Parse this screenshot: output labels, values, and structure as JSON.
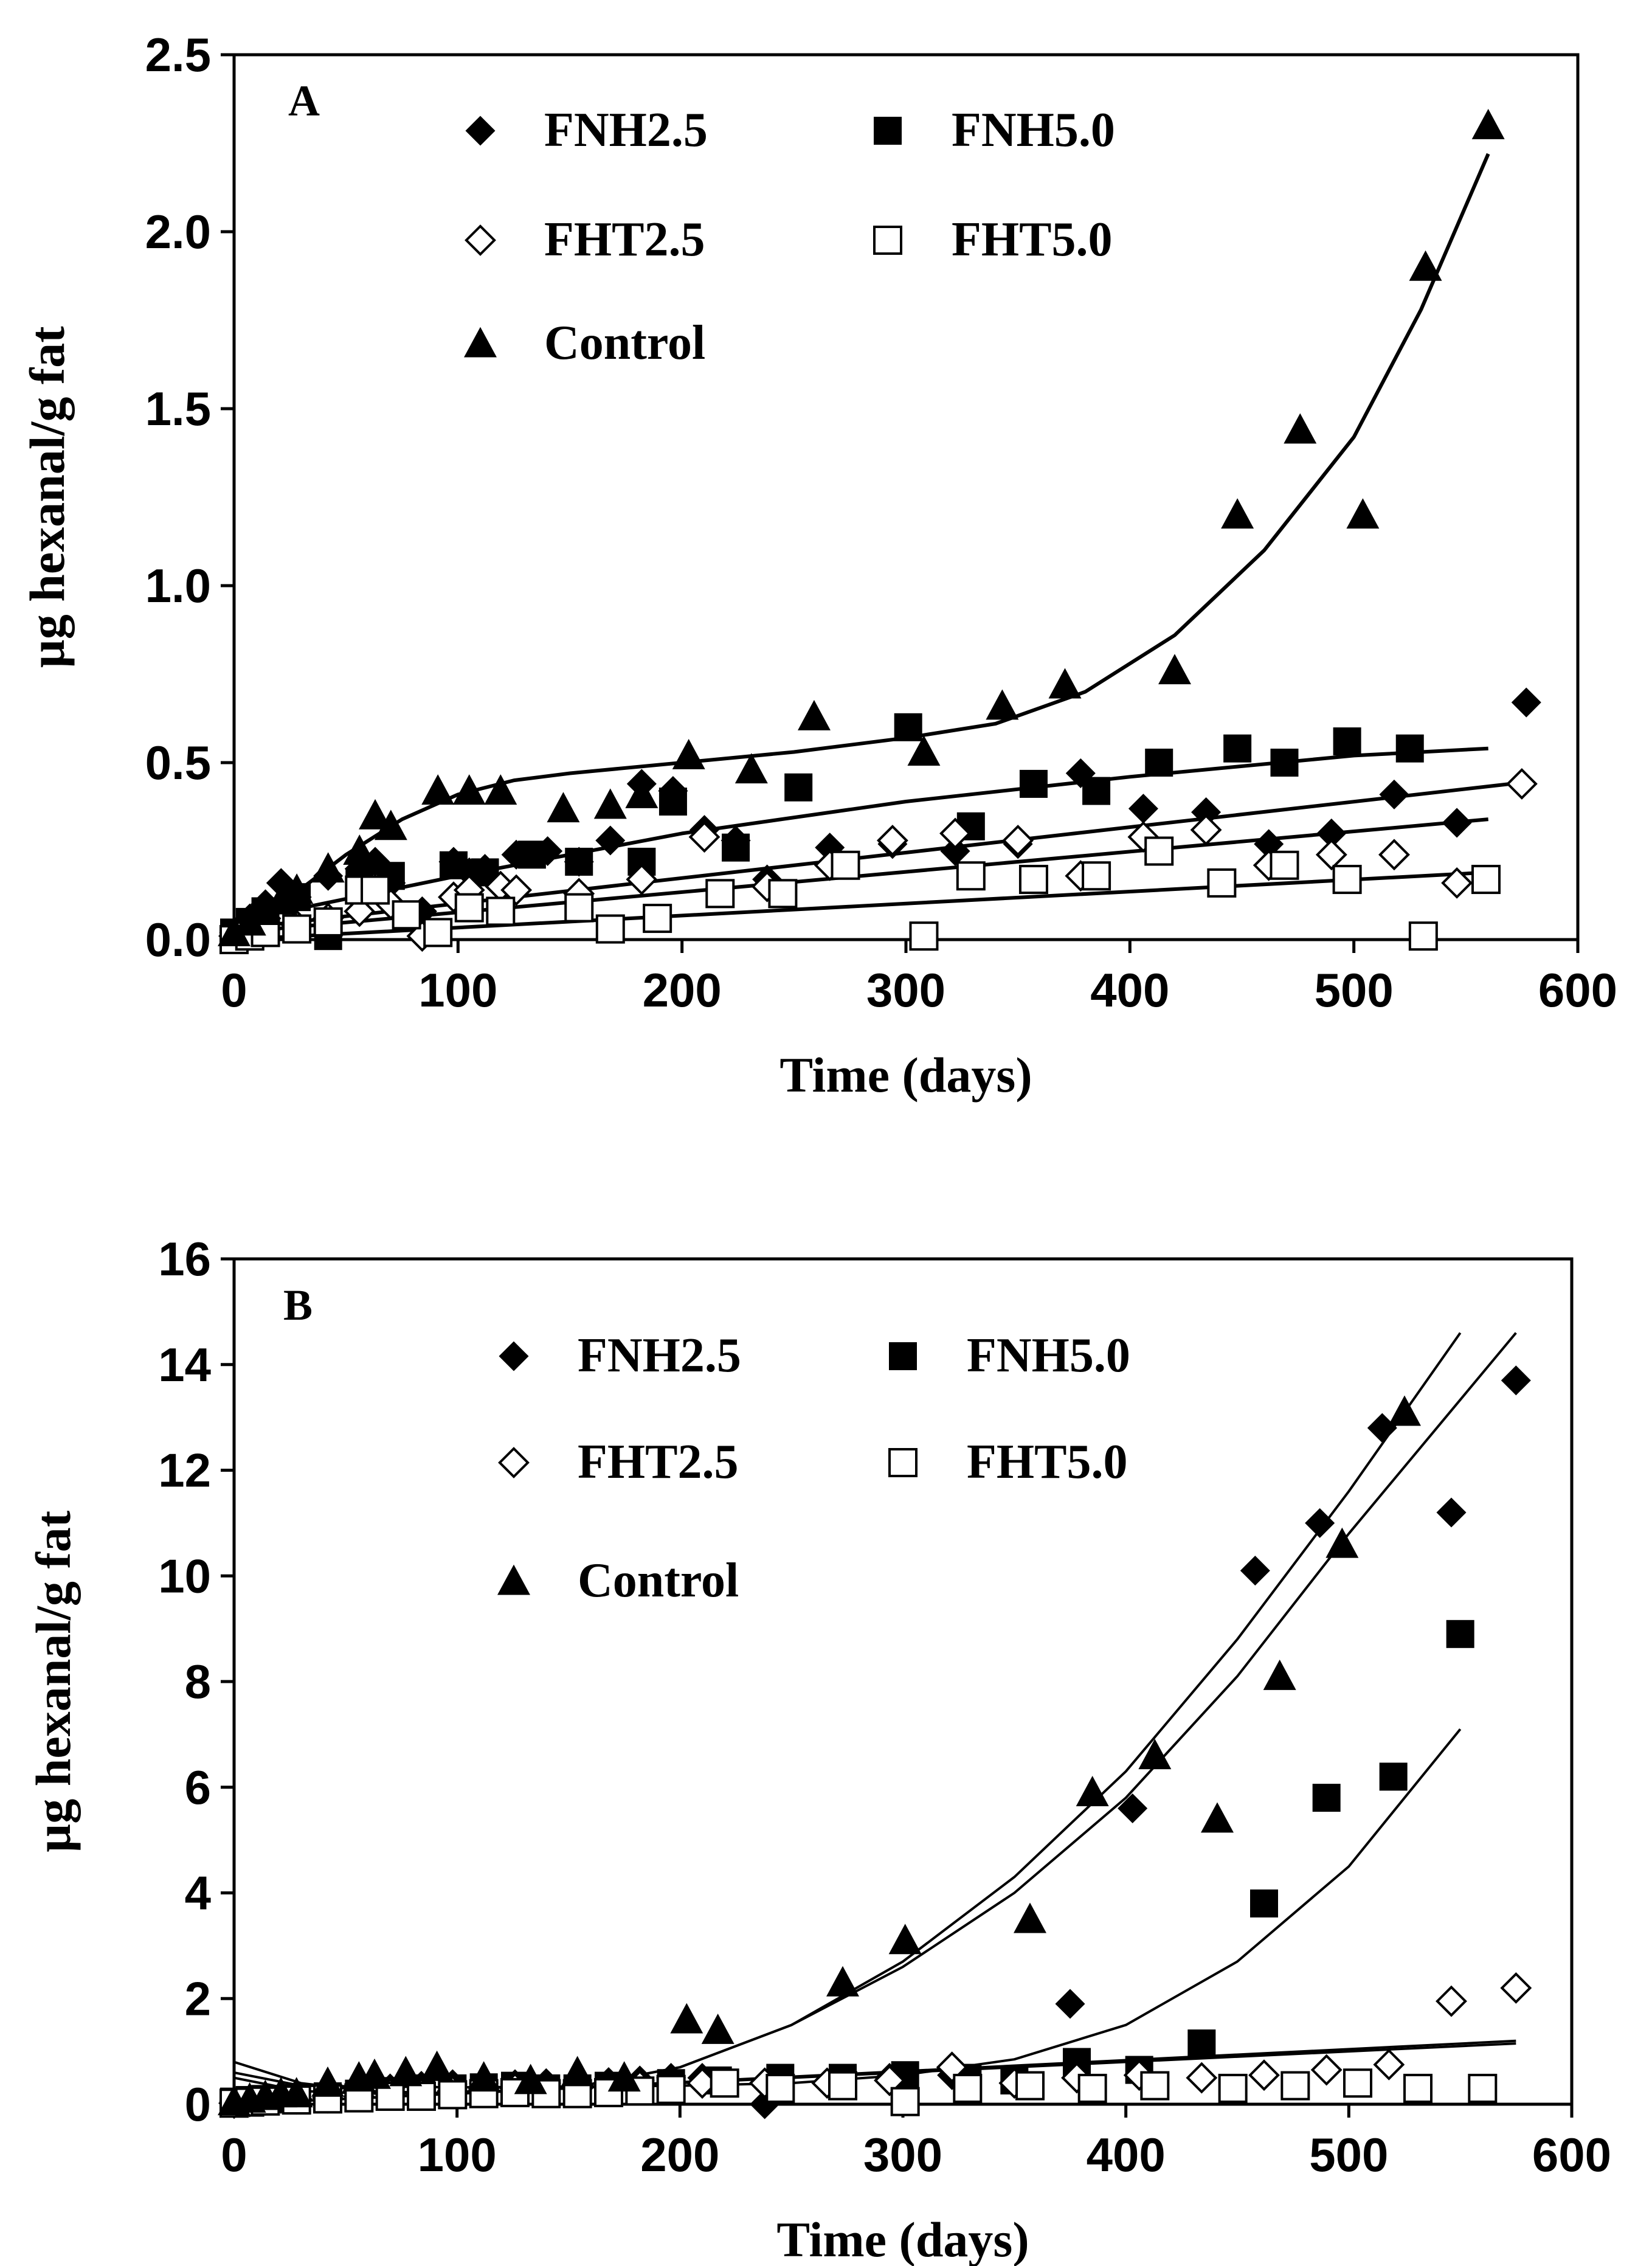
{
  "chart_data": [
    {
      "type": "scatter",
      "panel_label": "A",
      "xlabel": "Time (days)",
      "ylabel": "µg hexanal/g fat",
      "xlim": [
        0,
        600
      ],
      "ylim": [
        0,
        2.5
      ],
      "x_ticks": [
        "0",
        "100",
        "200",
        "300",
        "400",
        "500",
        "600"
      ],
      "y_ticks": [
        "0.0",
        "0.5",
        "1.0",
        "1.5",
        "2.0",
        "2.5"
      ],
      "grid": false,
      "series": [
        {
          "name": "FNH2.5",
          "marker": "diamond-filled",
          "x": [
            0,
            7,
            14,
            21,
            28,
            42,
            56,
            63,
            70,
            84,
            98,
            105,
            112,
            126,
            140,
            154,
            168,
            182,
            196,
            210,
            224,
            238,
            266,
            294,
            322,
            350,
            378,
            406,
            434,
            462,
            490,
            518,
            546,
            577
          ],
          "y": [
            0.02,
            0.06,
            0.1,
            0.16,
            0.12,
            0.18,
            0.2,
            0.22,
            0.16,
            0.08,
            0.22,
            0.19,
            0.2,
            0.24,
            0.25,
            0.22,
            0.28,
            0.44,
            0.42,
            0.31,
            0.28,
            0.17,
            0.26,
            0.27,
            0.25,
            0.27,
            0.47,
            0.37,
            0.36,
            0.27,
            0.3,
            0.41,
            0.33,
            0.67
          ],
          "fit": [
            [
              0,
              0.02
            ],
            [
              560,
              0.34
            ]
          ]
        },
        {
          "name": "FNH5.0",
          "marker": "square-filled",
          "x": [
            0,
            7,
            14,
            28,
            42,
            56,
            70,
            98,
            112,
            133,
            154,
            182,
            196,
            224,
            252,
            301,
            329,
            357,
            385,
            413,
            448,
            469,
            497,
            525
          ],
          "y": [
            0.02,
            0.05,
            0.08,
            0.12,
            0.01,
            0.16,
            0.18,
            0.21,
            0.19,
            0.24,
            0.22,
            0.22,
            0.39,
            0.26,
            0.43,
            0.6,
            0.32,
            0.44,
            0.42,
            0.5,
            0.54,
            0.5,
            0.56,
            0.54
          ],
          "fit": [
            [
              0,
              0.05
            ],
            [
              100,
              0.18
            ],
            [
              200,
              0.3
            ],
            [
              300,
              0.39
            ],
            [
              400,
              0.46
            ],
            [
              500,
              0.52
            ],
            [
              560,
              0.54
            ]
          ]
        },
        {
          "name": "FHT2.5",
          "marker": "diamond-open",
          "x": [
            0,
            7,
            14,
            28,
            42,
            56,
            70,
            84,
            98,
            105,
            119,
            126,
            154,
            182,
            210,
            238,
            266,
            294,
            322,
            350,
            378,
            406,
            434,
            462,
            490,
            518,
            546,
            575
          ],
          "y": [
            0.01,
            0.03,
            0.06,
            0.04,
            0.06,
            0.08,
            0.1,
            0.01,
            0.12,
            0.14,
            0.15,
            0.14,
            0.13,
            0.17,
            0.29,
            0.15,
            0.21,
            0.28,
            0.3,
            0.28,
            0.18,
            0.29,
            0.31,
            0.21,
            0.24,
            0.24,
            0.16,
            0.44
          ],
          "fit": [
            [
              0,
              0.03
            ],
            [
              570,
              0.44
            ]
          ]
        },
        {
          "name": "FHT5.0",
          "marker": "square-open",
          "x": [
            0,
            7,
            14,
            28,
            42,
            56,
            63,
            77,
            91,
            105,
            119,
            154,
            168,
            189,
            217,
            245,
            273,
            308,
            329,
            357,
            385,
            413,
            441,
            469,
            497,
            531,
            559
          ],
          "y": [
            0.0,
            0.01,
            0.02,
            0.03,
            0.05,
            0.14,
            0.14,
            0.07,
            0.02,
            0.09,
            0.08,
            0.09,
            0.03,
            0.06,
            0.13,
            0.13,
            0.21,
            0.01,
            0.18,
            0.17,
            0.18,
            0.25,
            0.16,
            0.21,
            0.17,
            0.01,
            0.17
          ],
          "fit": [
            [
              0,
              0.0
            ],
            [
              560,
              0.19
            ]
          ]
        },
        {
          "name": "Control",
          "marker": "triangle-filled",
          "x": [
            0,
            7,
            14,
            21,
            28,
            42,
            56,
            63,
            70,
            91,
            105,
            119,
            147,
            168,
            182,
            203,
            231,
            259,
            308,
            343,
            371,
            420,
            448,
            476,
            504,
            532,
            560
          ],
          "y": [
            0.02,
            0.05,
            0.08,
            0.11,
            0.14,
            0.2,
            0.25,
            0.35,
            0.32,
            0.42,
            0.42,
            0.42,
            0.37,
            0.38,
            0.41,
            0.52,
            0.48,
            0.63,
            0.53,
            0.66,
            0.72,
            0.76,
            1.2,
            1.44,
            1.2,
            1.9,
            2.3
          ],
          "fit": [
            [
              0,
              0.0
            ],
            [
              25,
              0.12
            ],
            [
              50,
              0.24
            ],
            [
              75,
              0.34
            ],
            [
              100,
              0.41
            ],
            [
              125,
              0.45
            ],
            [
              150,
              0.47
            ],
            [
              200,
              0.5
            ],
            [
              250,
              0.53
            ],
            [
              300,
              0.57
            ],
            [
              340,
              0.61
            ],
            [
              380,
              0.7
            ],
            [
              420,
              0.86
            ],
            [
              460,
              1.1
            ],
            [
              500,
              1.42
            ],
            [
              530,
              1.78
            ],
            [
              560,
              2.22
            ]
          ]
        }
      ],
      "legend": [
        "FNH2.5",
        "FNH5.0",
        "FHT2.5",
        "FHT5.0",
        "Control"
      ],
      "legend_placement": "top-left"
    },
    {
      "type": "scatter",
      "panel_label": "B",
      "xlabel": "Time (days)",
      "ylabel": "µg hexanal/g fat",
      "xlim": [
        0,
        600
      ],
      "ylim": [
        0,
        16
      ],
      "x_ticks": [
        "0",
        "100",
        "200",
        "300",
        "400",
        "500",
        "600"
      ],
      "y_ticks": [
        "0",
        "2",
        "4",
        "6",
        "8",
        "10",
        "12",
        "14",
        "16"
      ],
      "grid": false,
      "series": [
        {
          "name": "FNH2.5",
          "marker": "diamond-filled",
          "x": [
            0,
            7,
            14,
            21,
            28,
            42,
            56,
            70,
            84,
            98,
            112,
            126,
            140,
            154,
            168,
            182,
            196,
            210,
            238,
            266,
            294,
            322,
            375,
            403,
            458,
            487,
            515,
            546,
            575
          ],
          "y": [
            0.05,
            0.08,
            0.1,
            0.1,
            0.12,
            0.18,
            0.25,
            0.3,
            0.35,
            0.38,
            0.4,
            0.38,
            0.4,
            0.35,
            0.42,
            0.45,
            0.5,
            0.5,
            0.0,
            0.4,
            0.5,
            0.55,
            1.9,
            5.6,
            10.1,
            11.0,
            12.8,
            11.2,
            13.7
          ],
          "fit": [
            [
              0,
              0.5
            ],
            [
              30,
              0.25
            ],
            [
              60,
              0.2
            ],
            [
              100,
              0.22
            ],
            [
              150,
              0.3
            ],
            [
              200,
              0.7
            ],
            [
              250,
              1.5
            ],
            [
              300,
              2.7
            ],
            [
              350,
              4.3
            ],
            [
              400,
              6.3
            ],
            [
              450,
              8.8
            ],
            [
              500,
              11.6
            ],
            [
              550,
              14.6
            ]
          ]
        },
        {
          "name": "FNH5.0",
          "marker": "square-filled",
          "x": [
            0,
            7,
            14,
            28,
            42,
            56,
            70,
            84,
            98,
            112,
            126,
            140,
            154,
            168,
            196,
            217,
            245,
            273,
            301,
            329,
            350,
            378,
            406,
            434,
            462,
            490,
            520,
            550
          ],
          "y": [
            0.05,
            0.08,
            0.1,
            0.12,
            0.15,
            0.2,
            0.25,
            0.3,
            0.3,
            0.32,
            0.35,
            0.3,
            0.3,
            0.35,
            0.4,
            0.45,
            0.5,
            0.5,
            0.55,
            0.5,
            0.45,
            0.8,
            0.65,
            1.15,
            3.8,
            5.8,
            6.2,
            8.9
          ],
          "fit": [
            [
              0,
              0.6
            ],
            [
              30,
              0.35
            ],
            [
              100,
              0.32
            ],
            [
              200,
              0.35
            ],
            [
              250,
              0.4
            ],
            [
              300,
              0.55
            ],
            [
              350,
              0.85
            ],
            [
              400,
              1.5
            ],
            [
              450,
              2.7
            ],
            [
              500,
              4.5
            ],
            [
              550,
              7.1
            ]
          ]
        },
        {
          "name": "FHT2.5",
          "marker": "diamond-open",
          "x": [
            0,
            7,
            14,
            28,
            42,
            56,
            70,
            84,
            98,
            112,
            126,
            154,
            182,
            210,
            238,
            266,
            294,
            322,
            350,
            378,
            406,
            434,
            462,
            490,
            518,
            546,
            575
          ],
          "y": [
            0.02,
            0.05,
            0.08,
            0.1,
            0.12,
            0.15,
            0.2,
            0.2,
            0.25,
            0.3,
            0.3,
            0.3,
            0.35,
            0.4,
            0.4,
            0.4,
            0.45,
            0.7,
            0.4,
            0.5,
            0.55,
            0.5,
            0.55,
            0.65,
            0.75,
            1.95,
            2.2
          ],
          "fit": [
            [
              0,
              0.0
            ],
            [
              575,
              1.2
            ]
          ]
        },
        {
          "name": "FHT5.0",
          "marker": "square-open",
          "x": [
            0,
            7,
            14,
            28,
            42,
            56,
            70,
            84,
            98,
            112,
            126,
            140,
            154,
            168,
            182,
            196,
            220,
            245,
            273,
            301,
            329,
            357,
            385,
            413,
            448,
            476,
            504,
            531,
            560
          ],
          "y": [
            0.02,
            0.04,
            0.06,
            0.08,
            0.1,
            0.12,
            0.15,
            0.15,
            0.18,
            0.2,
            0.22,
            0.2,
            0.2,
            0.22,
            0.25,
            0.28,
            0.4,
            0.3,
            0.35,
            0.05,
            0.3,
            0.35,
            0.3,
            0.35,
            0.3,
            0.35,
            0.4,
            0.3,
            0.3
          ],
          "fit": [
            [
              0,
              0.0
            ],
            [
              575,
              1.15
            ]
          ]
        },
        {
          "name": "Control",
          "marker": "triangle-filled",
          "x": [
            0,
            7,
            14,
            21,
            28,
            42,
            56,
            63,
            77,
            91,
            112,
            133,
            154,
            175,
            203,
            217,
            273,
            301,
            357,
            385,
            413,
            441,
            469,
            497,
            525
          ],
          "y": [
            0.05,
            0.1,
            0.15,
            0.2,
            0.2,
            0.4,
            0.5,
            0.55,
            0.6,
            0.7,
            0.5,
            0.45,
            0.6,
            0.5,
            1.6,
            1.4,
            2.3,
            3.1,
            3.5,
            5.9,
            6.6,
            5.4,
            8.1,
            10.6,
            13.1
          ],
          "fit": [
            [
              0,
              0.8
            ],
            [
              30,
              0.4
            ],
            [
              60,
              0.25
            ],
            [
              100,
              0.2
            ],
            [
              150,
              0.3
            ],
            [
              200,
              0.7
            ],
            [
              250,
              1.5
            ],
            [
              300,
              2.6
            ],
            [
              350,
              4.0
            ],
            [
              400,
              5.8
            ],
            [
              450,
              8.1
            ],
            [
              500,
              10.8
            ],
            [
              575,
              14.6
            ]
          ]
        }
      ],
      "legend": [
        "FNH2.5",
        "FNH5.0",
        "FHT2.5",
        "FHT5.0",
        "Control"
      ],
      "legend_placement": "top-left"
    }
  ]
}
